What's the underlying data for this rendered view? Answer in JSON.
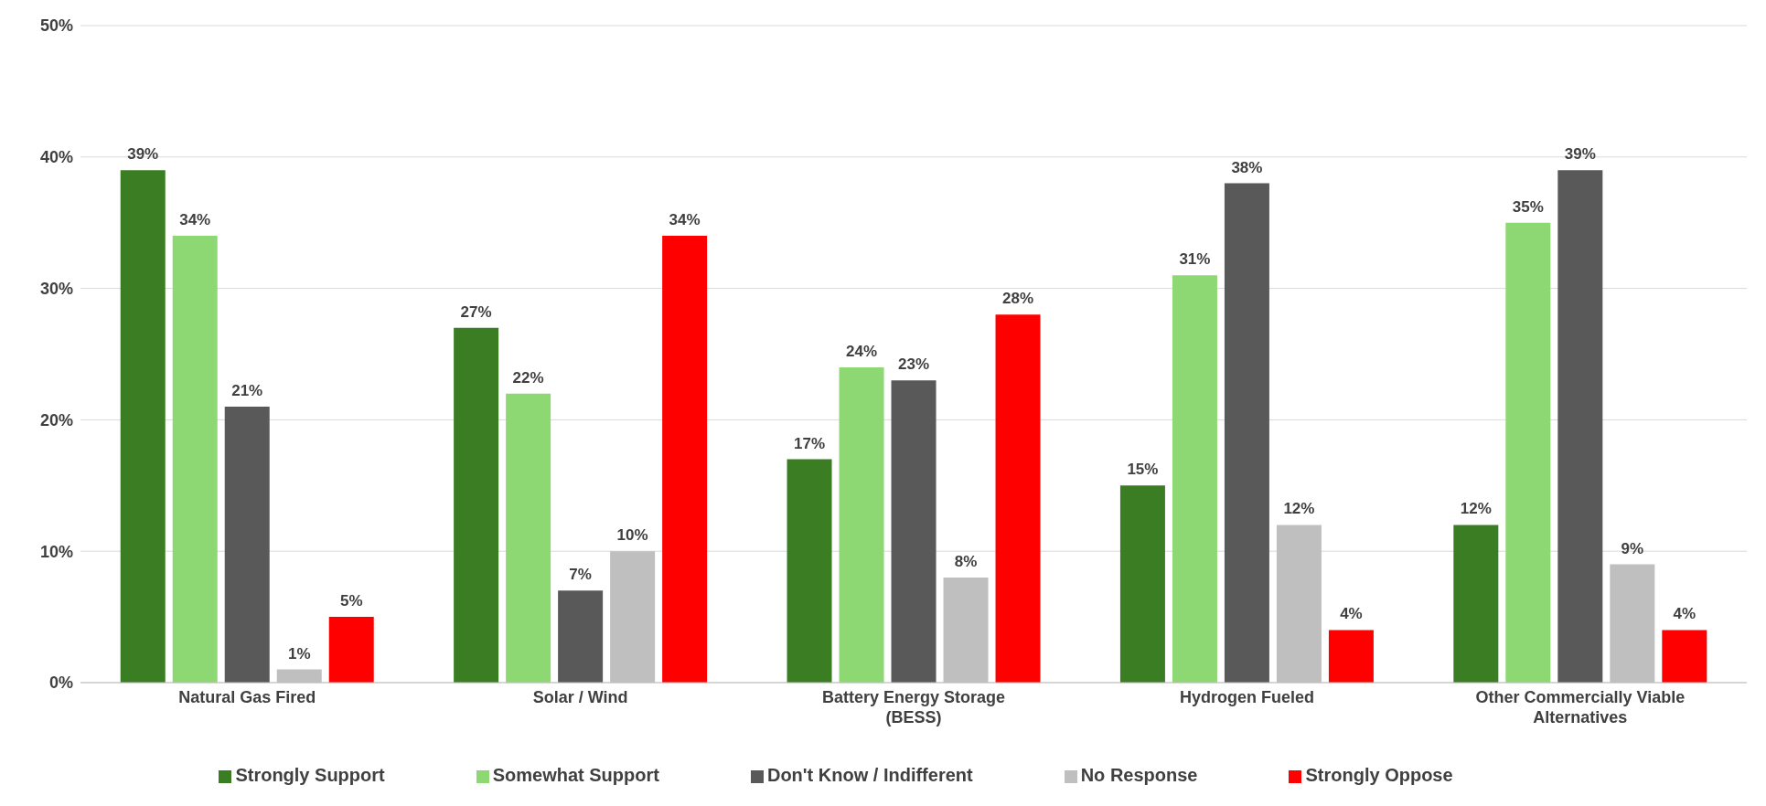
{
  "chart_data": {
    "type": "bar",
    "categories": [
      "Natural Gas Fired",
      "Solar / Wind",
      "Battery Energy Storage (BESS)",
      "Hydrogen Fueled",
      "Other Commercially Viable Alternatives"
    ],
    "series": [
      {
        "name": "Strongly Support",
        "color": "#3a7d22",
        "values": [
          39,
          27,
          17,
          15,
          12
        ],
        "value_labels": [
          "39%",
          "27%",
          "17%",
          "15%",
          "12%"
        ]
      },
      {
        "name": "Somewhat Support",
        "color": "#8ed873",
        "values": [
          34,
          22,
          24,
          31,
          35
        ],
        "value_labels": [
          "34%",
          "22%",
          "24%",
          "31%",
          "35%"
        ]
      },
      {
        "name": "Don't Know / Indifferent",
        "color": "#595959",
        "values": [
          21,
          7,
          23,
          38,
          39
        ],
        "value_labels": [
          "21%",
          "7%",
          "23%",
          "38%",
          "39%"
        ]
      },
      {
        "name": "No Response",
        "color": "#bfbfbf",
        "values": [
          1,
          10,
          8,
          12,
          9
        ],
        "value_labels": [
          "1%",
          "10%",
          "8%",
          "12%",
          "9%"
        ]
      },
      {
        "name": "Strongly Oppose",
        "color": "#ff0000",
        "values": [
          5,
          34,
          28,
          4,
          4
        ],
        "value_labels": [
          "5%",
          "34%",
          "28%",
          "4%",
          "4%"
        ]
      }
    ],
    "ylim": [
      0,
      50
    ],
    "yticks": [
      {
        "value": 0,
        "label": "0%"
      },
      {
        "value": 10,
        "label": "10%"
      },
      {
        "value": 20,
        "label": "20%"
      },
      {
        "value": 30,
        "label": "30%"
      },
      {
        "value": 40,
        "label": "40%"
      },
      {
        "value": 50,
        "label": "50%"
      }
    ],
    "grid": "y",
    "legend": "bottom"
  }
}
